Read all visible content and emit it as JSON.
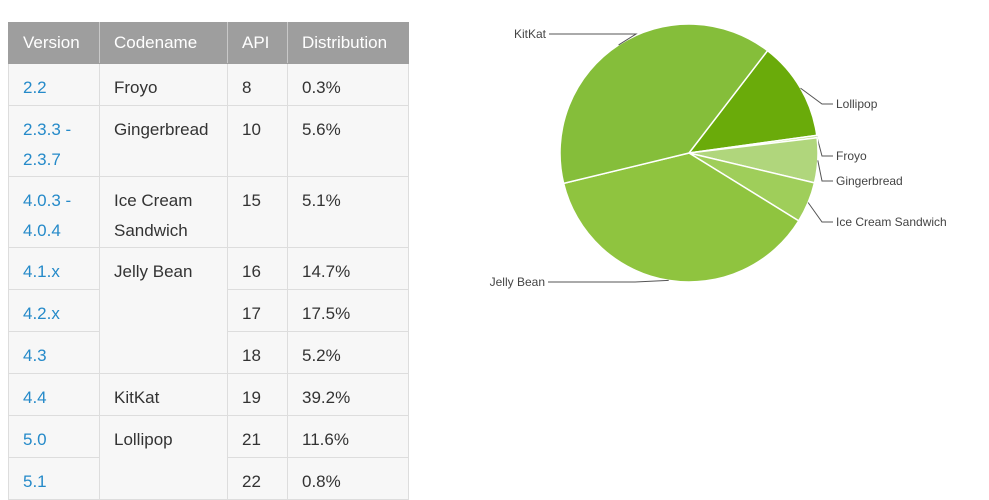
{
  "table": {
    "headers": [
      "Version",
      "Codename",
      "API",
      "Distribution"
    ],
    "rows": [
      {
        "version": "2.2",
        "codename": "Froyo",
        "api": "8",
        "distribution": "0.3%"
      },
      {
        "version": "2.3.3 - 2.3.7",
        "codename": "Gingerbread",
        "api": "10",
        "distribution": "5.6%"
      },
      {
        "version": "4.0.3 - 4.0.4",
        "codename": "Ice Cream Sandwich",
        "api": "15",
        "distribution": "5.1%"
      },
      {
        "version": "4.1.x",
        "codename": "Jelly Bean",
        "api": "16",
        "distribution": "14.7%"
      },
      {
        "version": "4.2.x",
        "codename": "",
        "api": "17",
        "distribution": "17.5%"
      },
      {
        "version": "4.3",
        "codename": "",
        "api": "18",
        "distribution": "5.2%"
      },
      {
        "version": "4.4",
        "codename": "KitKat",
        "api": "19",
        "distribution": "39.2%"
      },
      {
        "version": "5.0",
        "codename": "Lollipop",
        "api": "21",
        "distribution": "11.6%"
      },
      {
        "version": "5.1",
        "codename": "",
        "api": "22",
        "distribution": "0.8%"
      }
    ]
  },
  "chart_data": {
    "type": "pie",
    "slices": [
      {
        "label": "Lollipop",
        "value": 12.4,
        "color": "#6aab0a"
      },
      {
        "label": "Froyo",
        "value": 0.3,
        "color": "#b8dc82"
      },
      {
        "label": "Gingerbread",
        "value": 5.6,
        "color": "#b0d67c"
      },
      {
        "label": "Ice Cream Sandwich",
        "value": 5.1,
        "color": "#9fce5a"
      },
      {
        "label": "Jelly Bean",
        "value": 37.4,
        "color": "#8fc43f"
      },
      {
        "label": "KitKat",
        "value": 39.2,
        "color": "#85be3a"
      }
    ]
  }
}
